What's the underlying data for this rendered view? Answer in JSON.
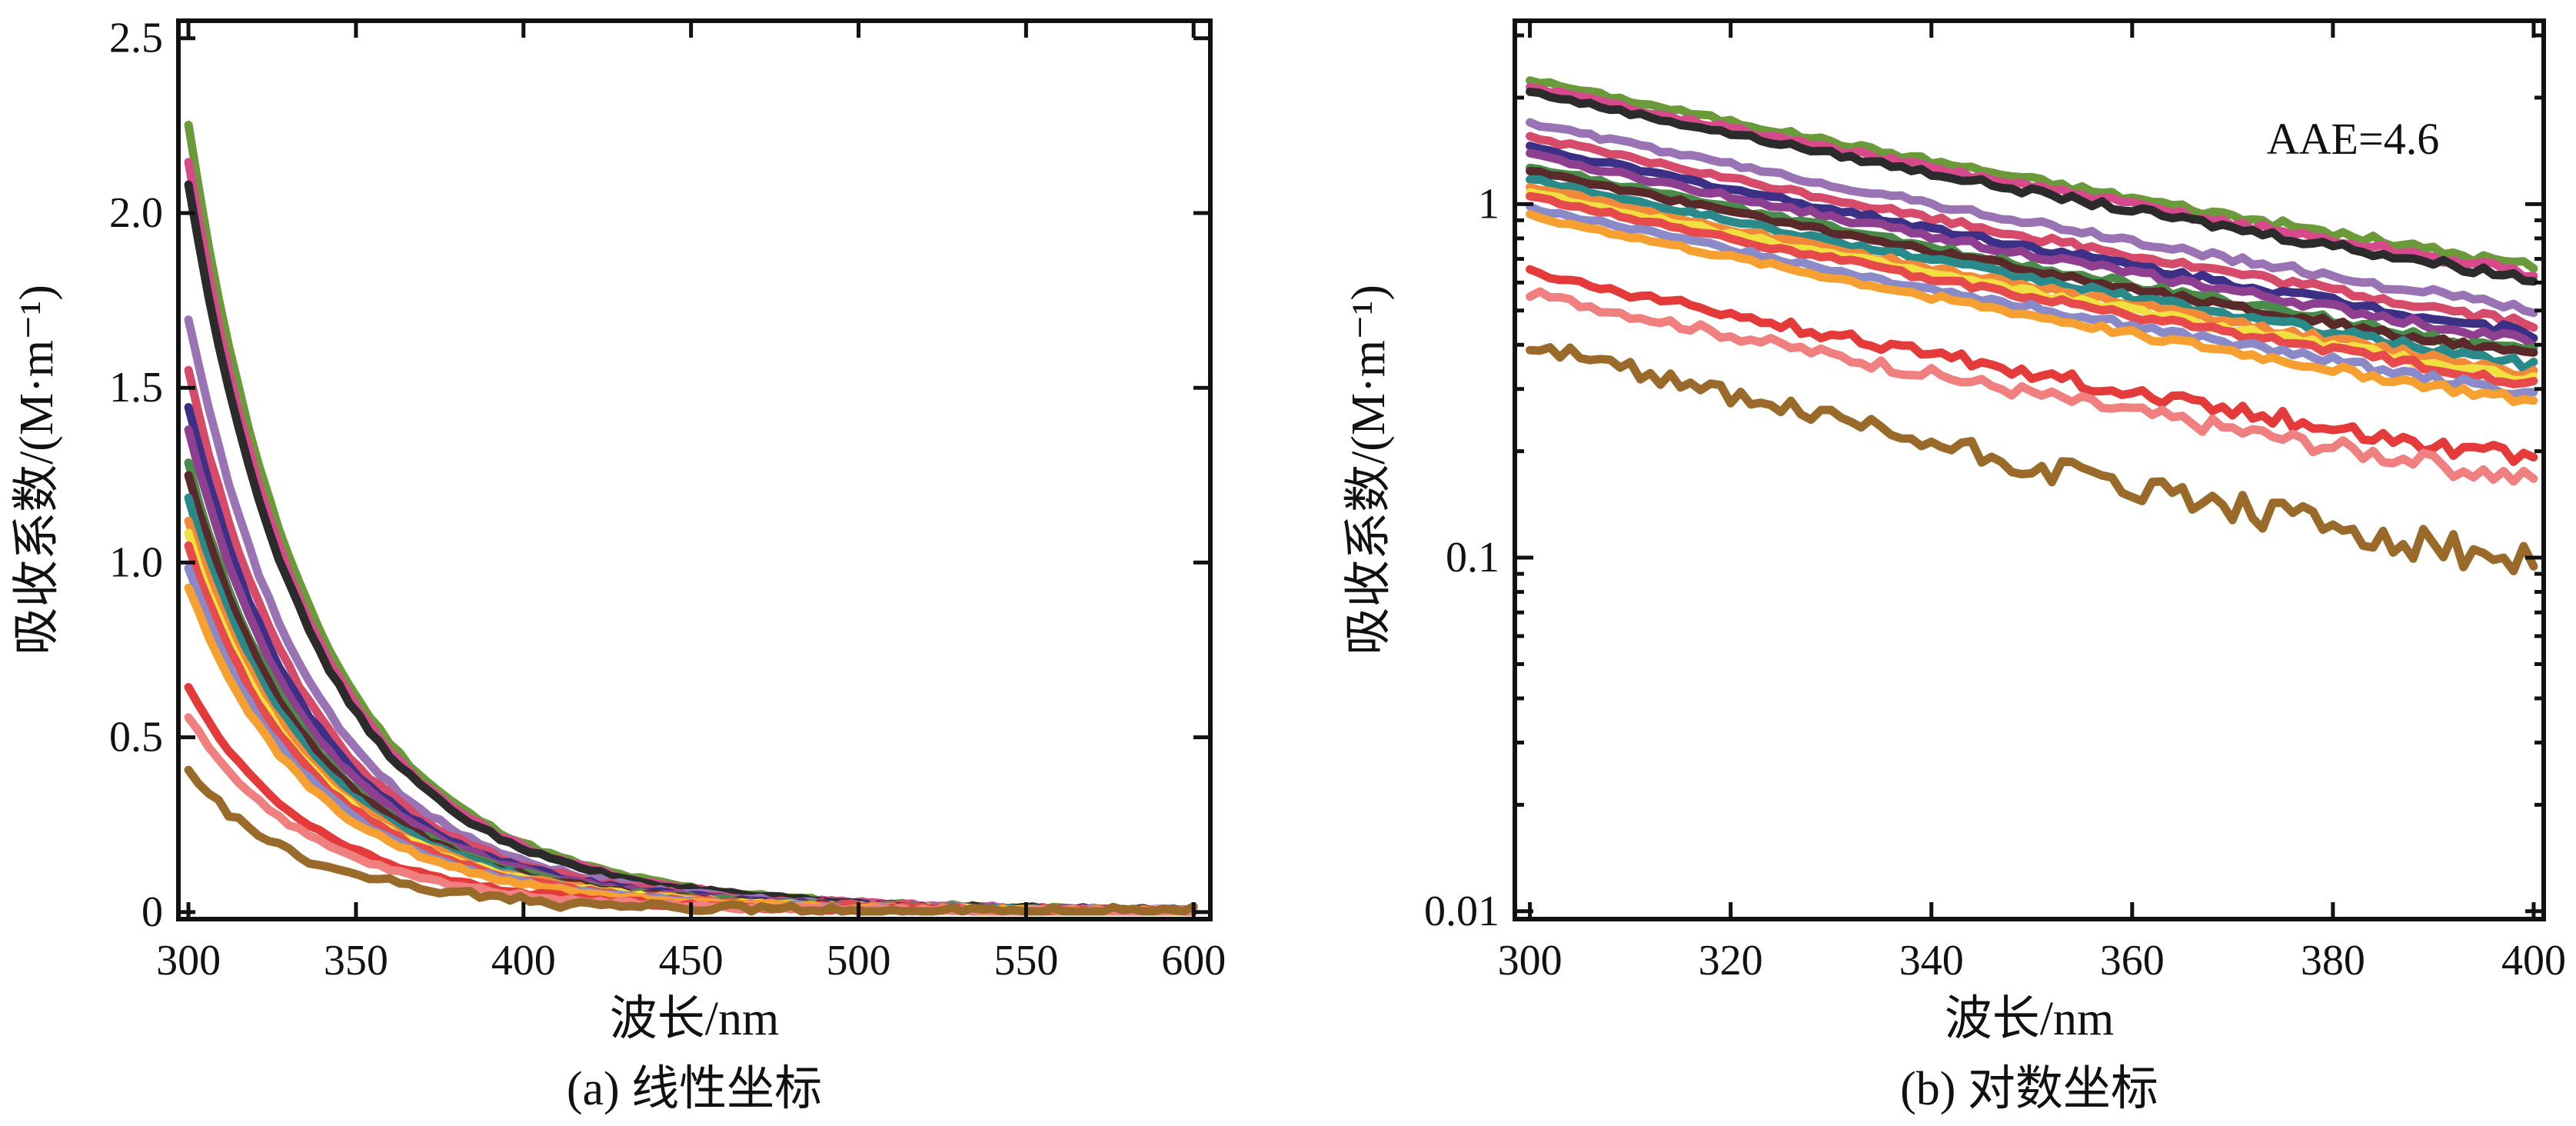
{
  "chart_data": [
    {
      "type": "line",
      "caption": "(a) 线性坐标",
      "xlabel": "波长/nm",
      "ylabel": "吸收系数/(M·m⁻¹)",
      "xlim": [
        297,
        605
      ],
      "ylim": [
        -0.02,
        2.55
      ],
      "x_ticks": [
        300,
        350,
        400,
        450,
        500,
        550,
        600
      ],
      "x_tick_labels": [
        "300",
        "350",
        "400",
        "450",
        "500",
        "550",
        "600"
      ],
      "y_ticks": [
        0,
        0.5,
        1.0,
        1.5,
        2.0,
        2.5
      ],
      "y_tick_labels": [
        "0",
        "0.5",
        "1.0",
        "1.5",
        "2.0",
        "2.5"
      ],
      "x_range": [
        300,
        600
      ]
    },
    {
      "type": "line",
      "caption": "(b) 对数坐标",
      "xlabel": "波长/nm",
      "ylabel": "吸收系数/(M·m⁻¹)",
      "yscale": "log",
      "xlim": [
        298.5,
        401
      ],
      "ylim": [
        0.0095,
        3.3
      ],
      "x_ticks": [
        300,
        320,
        340,
        360,
        380,
        400
      ],
      "x_tick_labels": [
        "300",
        "320",
        "340",
        "360",
        "380",
        "400"
      ],
      "y_ticks": [
        0.01,
        0.1,
        1
      ],
      "y_tick_labels": [
        "0.01",
        "0.1",
        "1"
      ],
      "annotation": "AAE=4.6",
      "x_range": [
        300,
        400
      ]
    }
  ],
  "series": [
    {
      "color": "#6a9a3a",
      "a300": 2.25
    },
    {
      "color": "#d64a8c",
      "a300": 2.15
    },
    {
      "color": "#2b2b2b",
      "a300": 2.08
    },
    {
      "color": "#9a73b4",
      "a300": 1.7
    },
    {
      "color": "#d64a6a",
      "a300": 1.55
    },
    {
      "color": "#3b2f86",
      "a300": 1.45
    },
    {
      "color": "#8f3f8f",
      "a300": 1.38
    },
    {
      "color": "#4a8a4a",
      "a300": 1.28
    },
    {
      "color": "#5a2a2a",
      "a300": 1.25
    },
    {
      "color": "#2a8a8a",
      "a300": 1.18
    },
    {
      "color": "#f08a3a",
      "a300": 1.12
    },
    {
      "color": "#f0e040",
      "a300": 1.08
    },
    {
      "color": "#e64a4a",
      "a300": 1.05
    },
    {
      "color": "#8a8ac8",
      "a300": 0.98
    },
    {
      "color": "#f5a030",
      "a300": 0.93
    },
    {
      "color": "#e43a3a",
      "a300": 0.64
    },
    {
      "color": "#f08080",
      "a300": 0.56
    },
    {
      "color": "#9a6a2a",
      "a300": 0.4
    }
  ]
}
